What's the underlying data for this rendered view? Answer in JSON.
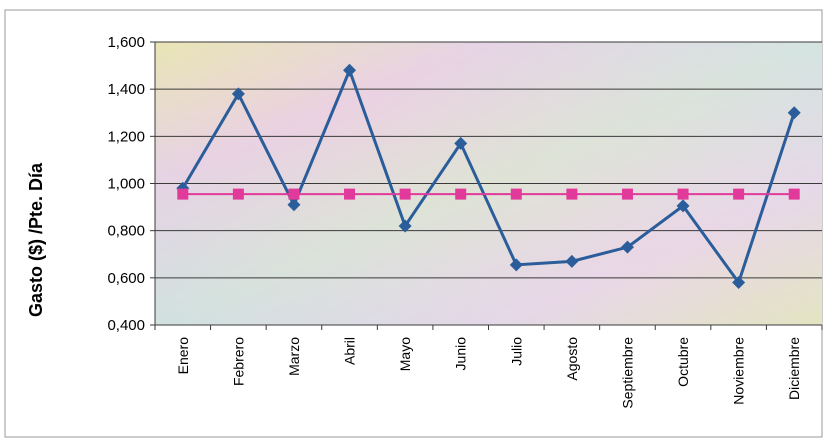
{
  "chart_data": {
    "type": "line",
    "ylabel": "Gasto ($) /Pte. Día",
    "xlabel": "",
    "title": "",
    "ylim": [
      0.4,
      1.6
    ],
    "y_ticks": [
      0.4,
      0.6,
      0.8,
      1.0,
      1.2,
      1.4,
      1.6
    ],
    "y_tick_labels": [
      "0,400",
      "0,600",
      "0,800",
      "1,000",
      "1,200",
      "1,400",
      "1,600"
    ],
    "grid": true,
    "categories": [
      "Enero",
      "Febrero",
      "Marzo",
      "Abril",
      "Mayo",
      "Junio",
      "Julio",
      "Agosto",
      "Septiembre",
      "Octubre",
      "Noviembre",
      "Diciembre"
    ],
    "series": [
      {
        "color": "#2a5d9a",
        "marker": "diamond",
        "values": [
          0.98,
          1.38,
          0.91,
          1.48,
          0.82,
          1.17,
          0.655,
          0.67,
          0.73,
          0.905,
          0.58,
          1.3
        ]
      },
      {
        "color": "#e23a9a",
        "marker": "square",
        "values": [
          0.955,
          0.955,
          0.955,
          0.955,
          0.955,
          0.955,
          0.955,
          0.955,
          0.955,
          0.955,
          0.955,
          0.955
        ]
      }
    ]
  }
}
